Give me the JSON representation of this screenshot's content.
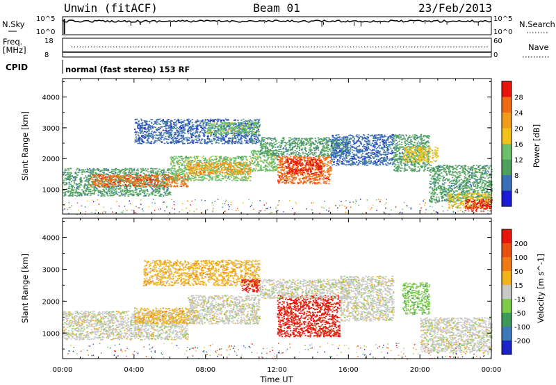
{
  "header": {
    "site": "Unwin (fitACF)",
    "beam": "Beam 01",
    "date": "23/Feb/2013"
  },
  "panels": {
    "nsky_label": "N.Sky",
    "nsearch_label": "N.Search",
    "count_ticks": [
      "10^5",
      "10^0"
    ],
    "freq_label": "Freq.",
    "freq_unit": "[MHz]",
    "freq_ticks": [
      "18",
      "8"
    ],
    "nave_label": "Nave",
    "nave_ticks": [
      "60",
      "0"
    ],
    "cpid_label": "CPID",
    "cpid_text": "normal (fast stereo) 153 RF"
  },
  "colors": {
    "power": [
      "#1b1bd6",
      "#3a6fb8",
      "#4fa05f",
      "#6cc06a",
      "#f2c21a",
      "#f29a1a",
      "#f06a14",
      "#e8140c"
    ],
    "velocity": [
      "#1b22c8",
      "#3d78b8",
      "#3c9a56",
      "#7ecb4a",
      "#c8c8c8",
      "#f2b21a",
      "#f07a14",
      "#e85010",
      "#e8140c"
    ]
  },
  "chart_data": [
    {
      "type": "heatmap",
      "title": "",
      "xlabel": "Time UT",
      "ylabel": "Slant Range [km]",
      "xlim": [
        0,
        24
      ],
      "ylim": [
        200,
        4600
      ],
      "x_ticks": [
        "00:00",
        "04:00",
        "08:00",
        "12:00",
        "16:00",
        "20:00",
        "00:00"
      ],
      "y_ticks": [
        "1000",
        "2000",
        "3000",
        "4000"
      ],
      "colorbar_label": "Power [dB]",
      "colorbar_ticks": [
        "4",
        "8",
        "12",
        "16",
        "20",
        "24",
        "28"
      ],
      "colorbar_range": [
        0,
        30
      ],
      "regions": [
        {
          "t0": 0.0,
          "t1": 6.0,
          "r0": 800,
          "r1": 1700,
          "level": 2
        },
        {
          "t0": 1.5,
          "t1": 7.0,
          "r0": 1100,
          "r1": 1500,
          "level": 6
        },
        {
          "t0": 6.0,
          "t1": 10.5,
          "r0": 1300,
          "r1": 2100,
          "level": 3
        },
        {
          "t0": 7.0,
          "t1": 10.5,
          "r0": 1500,
          "r1": 1900,
          "level": 5
        },
        {
          "t0": 4.0,
          "t1": 11.0,
          "r0": 2500,
          "r1": 3300,
          "level": 1
        },
        {
          "t0": 8.0,
          "t1": 11.0,
          "r0": 2800,
          "r1": 3200,
          "level": 3
        },
        {
          "t0": 10.5,
          "t1": 12.0,
          "r0": 1600,
          "r1": 2300,
          "level": 3
        },
        {
          "t0": 12.0,
          "t1": 15.0,
          "r0": 1200,
          "r1": 2100,
          "level": 6
        },
        {
          "t0": 12.5,
          "t1": 14.5,
          "r0": 1500,
          "r1": 2000,
          "level": 7
        },
        {
          "t0": 11.0,
          "t1": 16.0,
          "r0": 2100,
          "r1": 2700,
          "level": 2
        },
        {
          "t0": 15.0,
          "t1": 18.5,
          "r0": 1800,
          "r1": 2800,
          "level": 1
        },
        {
          "t0": 18.5,
          "t1": 20.5,
          "r0": 1600,
          "r1": 2800,
          "level": 2
        },
        {
          "t0": 19.0,
          "t1": 21.0,
          "r0": 1900,
          "r1": 2400,
          "level": 4
        },
        {
          "t0": 20.5,
          "t1": 24.0,
          "r0": 600,
          "r1": 1800,
          "level": 2
        },
        {
          "t0": 21.5,
          "t1": 24.0,
          "r0": 400,
          "r1": 900,
          "level": 4
        },
        {
          "t0": 22.5,
          "t1": 24.0,
          "r0": 300,
          "r1": 700,
          "level": 7
        }
      ]
    },
    {
      "type": "heatmap",
      "title": "",
      "xlabel": "Time UT",
      "ylabel": "Slant Range [km]",
      "xlim": [
        0,
        24
      ],
      "ylim": [
        200,
        4600
      ],
      "x_ticks": [
        "00:00",
        "04:00",
        "08:00",
        "12:00",
        "16:00",
        "20:00",
        "00:00"
      ],
      "y_ticks": [
        "1000",
        "2000",
        "3000",
        "4000"
      ],
      "colorbar_label": "Velocity [m s^-1]",
      "colorbar_ticks": [
        "200",
        "100",
        "50",
        "15",
        "-15",
        "-50",
        "-100",
        "-200"
      ],
      "colorbar_range": [
        -250,
        250
      ],
      "regions": [
        {
          "t0": 0.0,
          "t1": 7.0,
          "r0": 800,
          "r1": 1700,
          "level": 4
        },
        {
          "t0": 4.0,
          "t1": 7.5,
          "r0": 1300,
          "r1": 1800,
          "level": 5
        },
        {
          "t0": 7.0,
          "t1": 11.0,
          "r0": 1300,
          "r1": 2200,
          "level": 4
        },
        {
          "t0": 4.5,
          "t1": 11.0,
          "r0": 2500,
          "r1": 3300,
          "level": 5
        },
        {
          "t0": 10.0,
          "t1": 11.0,
          "r0": 2300,
          "r1": 2700,
          "level": 8
        },
        {
          "t0": 12.0,
          "t1": 15.5,
          "r0": 900,
          "r1": 2200,
          "level": 8
        },
        {
          "t0": 11.0,
          "t1": 16.0,
          "r0": 2100,
          "r1": 2700,
          "level": 4
        },
        {
          "t0": 15.5,
          "t1": 18.5,
          "r0": 1400,
          "r1": 2800,
          "level": 4
        },
        {
          "t0": 19.0,
          "t1": 20.5,
          "r0": 1600,
          "r1": 2600,
          "level": 3
        },
        {
          "t0": 20.0,
          "t1": 24.0,
          "r0": 400,
          "r1": 1500,
          "level": 4
        }
      ]
    }
  ]
}
